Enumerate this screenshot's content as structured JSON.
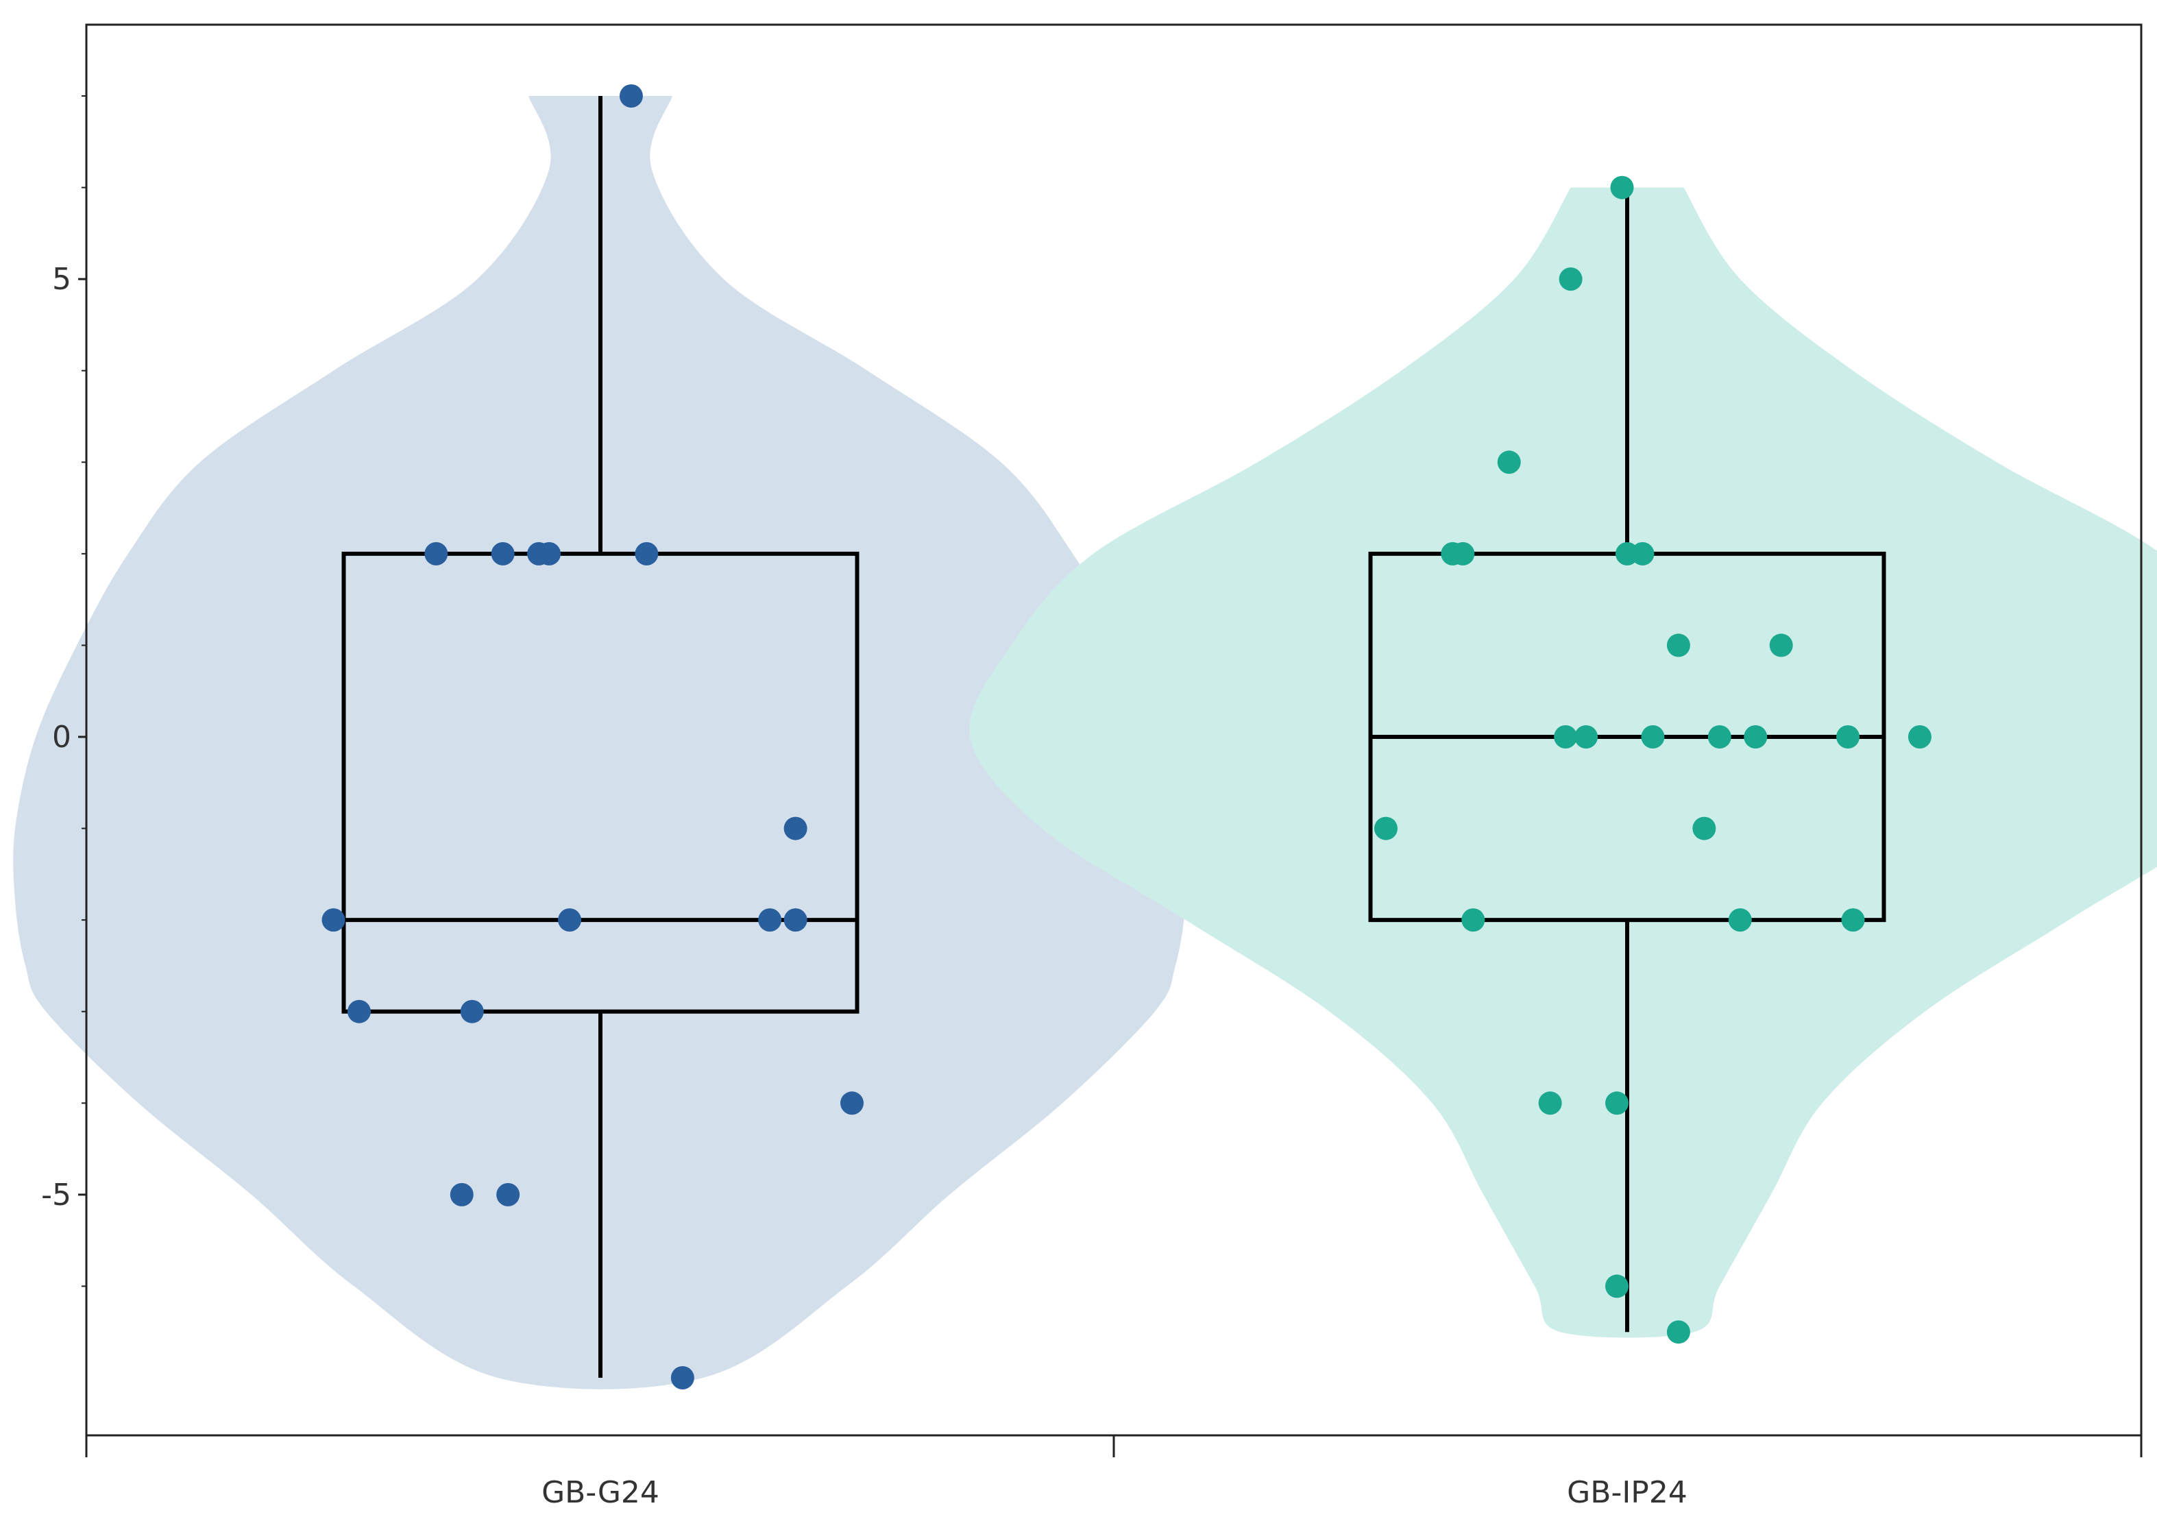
{
  "chart_data": {
    "type": "violin-box-strip",
    "categories": [
      "GB-G24",
      "GB-IP24"
    ],
    "ylim": [
      -7.8,
      7.8
    ],
    "yticks": [
      -5,
      0,
      5
    ],
    "ytick_labels": [
      "-5",
      "0",
      "5"
    ],
    "grid": false,
    "legend": "none",
    "series": [
      {
        "category": "GB-G24",
        "fill_color": "#d3dfeb",
        "point_color": "#2a5f9e",
        "box": {
          "q1": -3,
          "median": -2,
          "q3": 2,
          "whisker_low": -7,
          "whisker_high": 7
        },
        "violin": [
          {
            "y": 7,
            "w": 0.07
          },
          {
            "y": 6.2,
            "w": 0.05
          },
          {
            "y": 5,
            "w": 0.12
          },
          {
            "y": 4,
            "w": 0.26
          },
          {
            "y": 3,
            "w": 0.39
          },
          {
            "y": 2,
            "w": 0.46
          },
          {
            "y": 1,
            "w": 0.51
          },
          {
            "y": 0,
            "w": 0.55
          },
          {
            "y": -1,
            "w": 0.57
          },
          {
            "y": -1.8,
            "w": 0.57
          },
          {
            "y": -2.5,
            "w": 0.56
          },
          {
            "y": -3,
            "w": 0.54
          },
          {
            "y": -4,
            "w": 0.45
          },
          {
            "y": -5,
            "w": 0.34
          },
          {
            "y": -6,
            "w": 0.24
          },
          {
            "y": -7,
            "w": 0.1
          }
        ],
        "points": [
          {
            "x": 0.03,
            "y": 7
          },
          {
            "x": -0.16,
            "y": 2
          },
          {
            "x": -0.095,
            "y": 2
          },
          {
            "x": -0.06,
            "y": 2
          },
          {
            "x": -0.05,
            "y": 2
          },
          {
            "x": 0.045,
            "y": 2
          },
          {
            "x": 0.19,
            "y": -1
          },
          {
            "x": -0.26,
            "y": -2
          },
          {
            "x": -0.03,
            "y": -2
          },
          {
            "x": 0.165,
            "y": -2
          },
          {
            "x": 0.19,
            "y": -2
          },
          {
            "x": -0.235,
            "y": -3
          },
          {
            "x": -0.125,
            "y": -3
          },
          {
            "x": 0.245,
            "y": -4
          },
          {
            "x": -0.135,
            "y": -5
          },
          {
            "x": -0.09,
            "y": -5
          },
          {
            "x": 0.08,
            "y": -7
          }
        ]
      },
      {
        "category": "GB-IP24",
        "fill_color": "#cdede8",
        "point_color": "#1aa88f",
        "box": {
          "q1": -2,
          "median": 0,
          "q3": 2,
          "whisker_low": -6.5,
          "whisker_high": 6
        },
        "violin": [
          {
            "y": 6,
            "w": 0.055
          },
          {
            "y": 5,
            "w": 0.11
          },
          {
            "y": 4,
            "w": 0.22
          },
          {
            "y": 3,
            "w": 0.36
          },
          {
            "y": 2,
            "w": 0.52
          },
          {
            "y": 1,
            "w": 0.6
          },
          {
            "y": 0,
            "w": 0.64
          },
          {
            "y": -1,
            "w": 0.57
          },
          {
            "y": -2,
            "w": 0.43
          },
          {
            "y": -3,
            "w": 0.29
          },
          {
            "y": -4,
            "w": 0.19
          },
          {
            "y": -5,
            "w": 0.14
          },
          {
            "y": -6,
            "w": 0.09
          },
          {
            "y": -6.5,
            "w": 0.065
          }
        ],
        "points": [
          {
            "x": -0.005,
            "y": 6
          },
          {
            "x": -0.055,
            "y": 5
          },
          {
            "x": -0.115,
            "y": 3
          },
          {
            "x": -0.17,
            "y": 2
          },
          {
            "x": -0.16,
            "y": 2
          },
          {
            "x": 0.0,
            "y": 2
          },
          {
            "x": 0.015,
            "y": 2
          },
          {
            "x": 0.05,
            "y": 1
          },
          {
            "x": 0.15,
            "y": 1
          },
          {
            "x": -0.06,
            "y": 0
          },
          {
            "x": -0.04,
            "y": 0
          },
          {
            "x": 0.025,
            "y": 0
          },
          {
            "x": 0.09,
            "y": 0
          },
          {
            "x": 0.125,
            "y": 0
          },
          {
            "x": 0.215,
            "y": 0
          },
          {
            "x": 0.285,
            "y": 0
          },
          {
            "x": -0.235,
            "y": -1
          },
          {
            "x": 0.075,
            "y": -1
          },
          {
            "x": -0.15,
            "y": -2
          },
          {
            "x": 0.11,
            "y": -2
          },
          {
            "x": 0.22,
            "y": -2
          },
          {
            "x": -0.075,
            "y": -4
          },
          {
            "x": -0.01,
            "y": -4
          },
          {
            "x": -0.01,
            "y": -6
          },
          {
            "x": 0.05,
            "y": -6.5
          }
        ]
      }
    ]
  }
}
